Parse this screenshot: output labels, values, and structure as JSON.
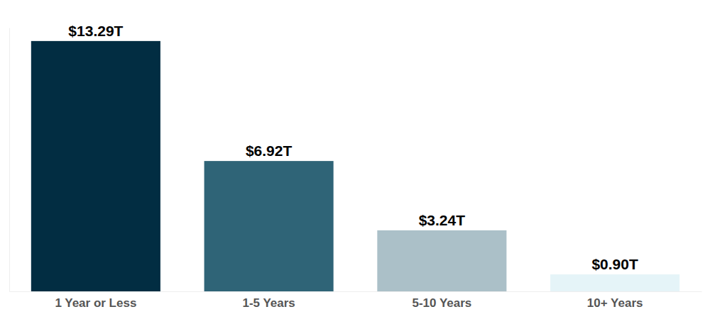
{
  "chart_data": {
    "type": "bar",
    "categories": [
      "1 Year or Less",
      "1-5 Years",
      "5-10 Years",
      "10+ Years"
    ],
    "values": [
      13.29,
      6.92,
      3.24,
      0.9
    ],
    "value_labels": [
      "$13.29T",
      "$6.92T",
      "$3.24T",
      "$0.90T"
    ],
    "colors": [
      "#022d42",
      "#2f6477",
      "#abc0c8",
      "#e5f4f8"
    ],
    "ylim": [
      0,
      14
    ],
    "data_labels": true,
    "tick_labels": "x"
  }
}
